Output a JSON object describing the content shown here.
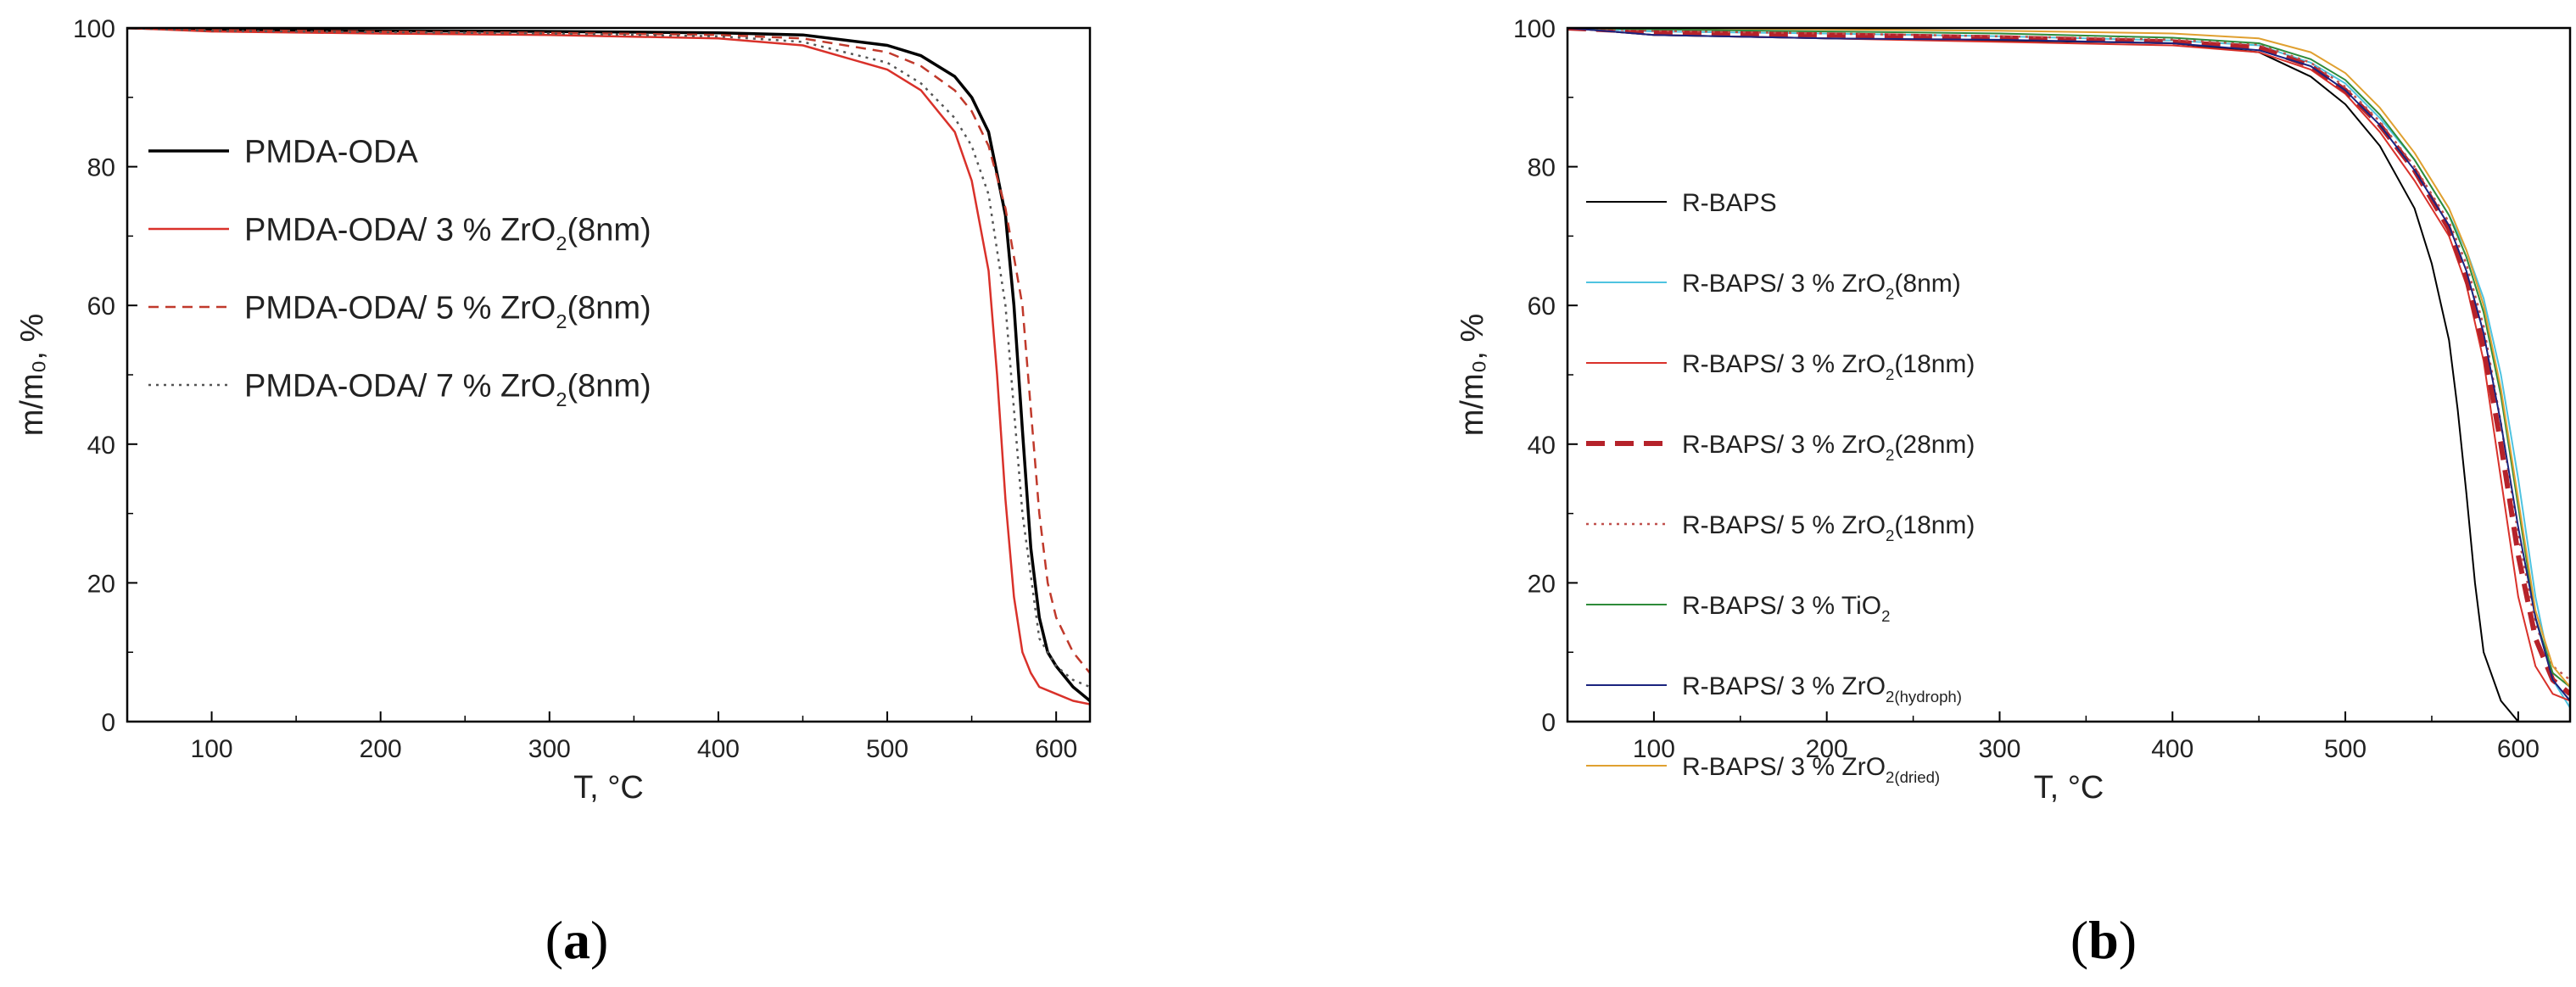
{
  "chart_data": [
    {
      "type": "line",
      "panel_label": "a",
      "xlabel": "T, °C",
      "ylabel": "m/m₀, %",
      "xlim": [
        50,
        620
      ],
      "ylim": [
        0,
        100
      ],
      "xticks": [
        100,
        200,
        300,
        400,
        500,
        600
      ],
      "yticks": [
        0,
        20,
        40,
        60,
        80,
        100
      ],
      "grid": false,
      "legend_position": "top-left",
      "series": [
        {
          "name": "PMDA-ODA",
          "legend_base": "PMDA-ODA",
          "legend_pct": "",
          "legend_sub": "",
          "legend_tail": "",
          "color": "#000000",
          "dash": "solid",
          "width": 3.5,
          "x": [
            50,
            100,
            200,
            300,
            400,
            450,
            500,
            520,
            540,
            550,
            560,
            570,
            575,
            580,
            585,
            590,
            595,
            600,
            610,
            620
          ],
          "y": [
            100,
            99.8,
            99.6,
            99.5,
            99.3,
            99,
            97.5,
            96,
            93,
            90,
            85,
            73,
            60,
            42,
            25,
            15,
            10,
            8,
            5,
            3
          ]
        },
        {
          "name": "PMDA-ODA/ 3 % ZrO2(8nm)",
          "legend_base": "PMDA-ODA/ 3 % ZrO",
          "legend_pct": "",
          "legend_sub": "2",
          "legend_tail": "(8nm)",
          "color": "#d9312a",
          "dash": "solid",
          "width": 2.5,
          "x": [
            50,
            100,
            200,
            300,
            400,
            450,
            500,
            520,
            540,
            550,
            560,
            565,
            570,
            575,
            580,
            585,
            590,
            600,
            610,
            620
          ],
          "y": [
            100,
            99.5,
            99.2,
            99,
            98.5,
            97.5,
            94,
            91,
            85,
            78,
            65,
            50,
            32,
            18,
            10,
            7,
            5,
            4,
            3,
            2.5
          ]
        },
        {
          "name": "PMDA-ODA/ 5 % ZrO2(8nm)",
          "legend_base": "PMDA-ODA/ 5 % ZrO",
          "legend_pct": "",
          "legend_sub": "2",
          "legend_tail": "(8nm)",
          "color": "#c0392b",
          "dash": "dashed",
          "width": 2.5,
          "x": [
            50,
            100,
            200,
            300,
            400,
            450,
            500,
            520,
            540,
            550,
            560,
            570,
            580,
            585,
            590,
            595,
            600,
            610,
            620
          ],
          "y": [
            100,
            99.7,
            99.5,
            99.3,
            99,
            98.5,
            96.5,
            94.5,
            91,
            88,
            83,
            74,
            60,
            45,
            30,
            20,
            15,
            10,
            7
          ]
        },
        {
          "name": "PMDA-ODA/ 7 % ZrO2(8nm)",
          "legend_base": "PMDA-ODA/ 7 % ZrO",
          "legend_pct": "",
          "legend_sub": "2",
          "legend_tail": "(8nm)",
          "color": "#555555",
          "dash": "dotted",
          "width": 2.5,
          "x": [
            50,
            100,
            200,
            300,
            400,
            450,
            500,
            520,
            540,
            550,
            560,
            570,
            580,
            590,
            600,
            610,
            620
          ],
          "y": [
            100,
            99.6,
            99.4,
            99.2,
            98.8,
            98,
            95,
            92,
            87,
            83,
            76,
            60,
            30,
            12,
            8,
            6,
            5
          ]
        }
      ]
    },
    {
      "type": "line",
      "panel_label": "b",
      "xlabel": "T, °C",
      "ylabel": "m/m₀, %",
      "xlim": [
        50,
        630
      ],
      "ylim": [
        0,
        100
      ],
      "xticks": [
        100,
        200,
        300,
        400,
        500,
        600
      ],
      "yticks": [
        0,
        20,
        40,
        60,
        80,
        100
      ],
      "grid": false,
      "legend_position": "center-left",
      "series": [
        {
          "name": "R-BAPS",
          "legend_base": "R-BAPS",
          "legend_sub": "",
          "legend_tail": "",
          "color": "#000000",
          "dash": "solid",
          "width": 2,
          "x": [
            50,
            100,
            200,
            300,
            400,
            450,
            480,
            500,
            520,
            540,
            550,
            560,
            565,
            570,
            575,
            580,
            590,
            600
          ],
          "y": [
            100,
            99,
            98.5,
            98.2,
            97.8,
            96.5,
            93,
            89,
            83,
            74,
            66,
            55,
            45,
            33,
            20,
            10,
            3,
            0
          ]
        },
        {
          "name": "R-BAPS/ 3 % ZrO2(8nm)",
          "legend_base": "R-BAPS/ 3 % ZrO",
          "legend_sub": "2",
          "legend_tail": "(8nm)",
          "color": "#4ec3e0",
          "dash": "solid",
          "width": 2,
          "x": [
            50,
            100,
            200,
            300,
            400,
            450,
            480,
            500,
            520,
            540,
            560,
            570,
            580,
            590,
            600,
            610,
            620,
            630
          ],
          "y": [
            100,
            99.5,
            99.2,
            98.8,
            98.2,
            97.5,
            95,
            92,
            87,
            81,
            73,
            68,
            61,
            50,
            35,
            18,
            6,
            2
          ]
        },
        {
          "name": "R-BAPS/ 3 % ZrO2(18nm)",
          "legend_base": "R-BAPS/ 3 % ZrO",
          "legend_sub": "2",
          "legend_tail": "(18nm)",
          "color": "#d9312a",
          "dash": "solid",
          "width": 2,
          "x": [
            50,
            100,
            200,
            300,
            400,
            450,
            480,
            500,
            520,
            540,
            560,
            570,
            580,
            590,
            600,
            610,
            620,
            630
          ],
          "y": [
            100,
            99,
            98.5,
            98,
            97.5,
            96.5,
            94,
            90.5,
            85,
            78,
            70,
            63,
            52,
            35,
            18,
            8,
            4,
            3
          ]
        },
        {
          "name": "R-BAPS/ 3 % ZrO2(28nm)",
          "legend_base": "R-BAPS/ 3 % ZrO",
          "legend_sub": "2",
          "legend_tail": "(28nm)",
          "color": "#b5222a",
          "dash": "longdash",
          "width": 6,
          "x": [
            50,
            100,
            200,
            300,
            400,
            450,
            480,
            500,
            520,
            540,
            560,
            570,
            580,
            590,
            600,
            610,
            620,
            630
          ],
          "y": [
            100,
            99.4,
            99,
            98.6,
            98,
            97.2,
            94.5,
            91,
            86,
            79.5,
            71,
            64,
            54,
            40,
            24,
            12,
            6,
            4
          ]
        },
        {
          "name": "R-BAPS/ 5 % ZrO2(18nm)",
          "legend_base": "R-BAPS/ 5 % ZrO",
          "legend_sub": "2",
          "legend_tail": "(18nm)",
          "color": "#c0504d",
          "dash": "dotted",
          "width": 2.5,
          "x": [
            50,
            100,
            200,
            300,
            400,
            450,
            480,
            500,
            520,
            540,
            560,
            570,
            580,
            590,
            600,
            610,
            620,
            630
          ],
          "y": [
            100,
            99.6,
            99.2,
            98.8,
            98.3,
            97.6,
            95,
            91.5,
            86.5,
            80,
            72,
            66,
            57,
            43,
            27,
            14,
            8,
            6
          ]
        },
        {
          "name": "R-BAPS/ 3 % TiO2",
          "legend_base": "R-BAPS/ 3 % TiO",
          "legend_sub": "2",
          "legend_tail": "",
          "color": "#2e8b3a",
          "dash": "solid",
          "width": 2,
          "x": [
            50,
            100,
            200,
            300,
            400,
            450,
            480,
            500,
            520,
            540,
            560,
            570,
            580,
            590,
            600,
            610,
            620,
            630
          ],
          "y": [
            100,
            99.8,
            99.5,
            99.2,
            98.6,
            97.8,
            95.5,
            92.5,
            87.5,
            81,
            73,
            67,
            59,
            47,
            31,
            15,
            7,
            5
          ]
        },
        {
          "name": "R-BAPS/ 3 % ZrO2(hydroph)",
          "legend_base": "R-BAPS/ 3 % ZrO",
          "legend_sub": "2(hydroph)",
          "legend_tail": "",
          "color": "#1a237e",
          "dash": "solid",
          "width": 2,
          "x": [
            50,
            100,
            200,
            300,
            400,
            450,
            480,
            500,
            520,
            540,
            560,
            570,
            580,
            590,
            600,
            610,
            620,
            630
          ],
          "y": [
            100,
            99,
            98.5,
            98.3,
            97.8,
            96.8,
            94.5,
            91,
            86,
            79.5,
            71.5,
            65,
            56,
            43,
            28,
            15,
            6,
            3
          ]
        },
        {
          "name": "R-BAPS/ 3 % ZrO2(dried)",
          "legend_base": "R-BAPS/ 3 % ZrO",
          "legend_sub": "2(dried)",
          "legend_tail": "",
          "color": "#e0a030",
          "dash": "solid",
          "width": 2,
          "x": [
            50,
            100,
            200,
            300,
            400,
            450,
            480,
            500,
            520,
            540,
            560,
            570,
            580,
            590,
            600,
            610,
            620,
            630
          ],
          "y": [
            100,
            100,
            99.8,
            99.6,
            99.2,
            98.5,
            96.5,
            93.5,
            88.5,
            82,
            74,
            68,
            60,
            48,
            32,
            16,
            8,
            5
          ]
        }
      ]
    }
  ]
}
